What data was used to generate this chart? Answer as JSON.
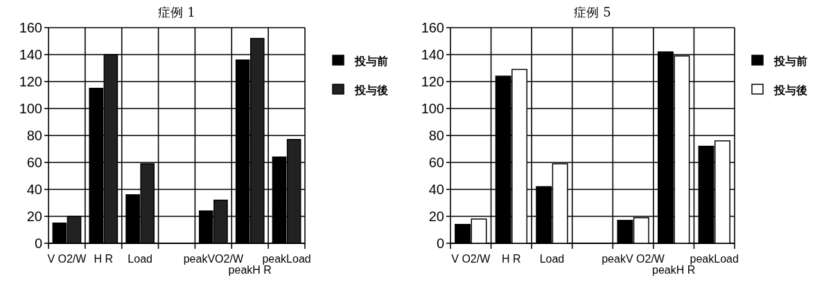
{
  "chart_data": [
    {
      "type": "bar",
      "title": "症例 1",
      "categories": [
        "V O2/W",
        "H R",
        "Load",
        null,
        "peakVO2/W",
        "peakH R",
        "peakLoad"
      ],
      "series": [
        {
          "name": "投与前",
          "color": "#000000",
          "values": [
            15,
            115,
            36,
            null,
            24,
            136,
            64
          ]
        },
        {
          "name": "投与後",
          "color": "#222222",
          "values": [
            20,
            140,
            59,
            null,
            32,
            152,
            77
          ]
        }
      ],
      "ylim": [
        0,
        160
      ],
      "yticks": [
        0,
        20,
        40,
        60,
        80,
        100,
        120,
        140,
        160
      ],
      "grid": true,
      "legend": "right"
    },
    {
      "type": "bar",
      "title": "症例 5",
      "categories": [
        "V O2/W",
        "H R",
        "Load",
        null,
        "peakV O2/W",
        "peakH R",
        "peakLoad"
      ],
      "series": [
        {
          "name": "投与前",
          "color": "#000000",
          "values": [
            14,
            124,
            42,
            null,
            17,
            142,
            72
          ]
        },
        {
          "name": "投与後",
          "color": "#ffffff",
          "values": [
            18,
            129,
            59,
            null,
            19,
            139,
            76
          ]
        }
      ],
      "ylim": [
        0,
        160
      ],
      "yticks": [
        0,
        20,
        40,
        60,
        80,
        100,
        120,
        140,
        160
      ],
      "grid": true,
      "legend": "right"
    }
  ]
}
